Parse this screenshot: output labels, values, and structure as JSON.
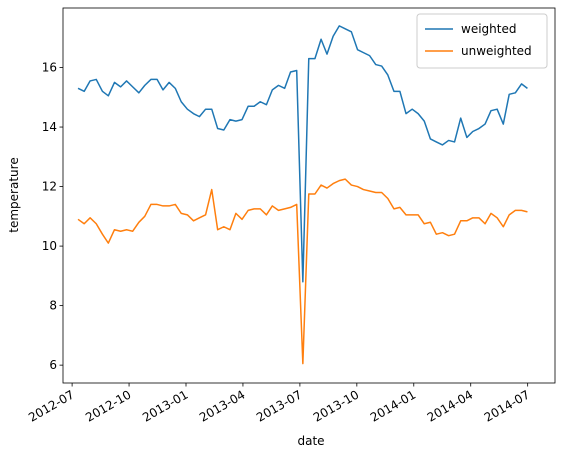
{
  "chart_data": {
    "type": "line",
    "xlabel": "date",
    "ylabel": "temperature",
    "x": [
      2012.526,
      2012.553,
      2012.579,
      2012.606,
      2012.633,
      2012.659,
      2012.686,
      2012.713,
      2012.739,
      2012.766,
      2012.793,
      2012.819,
      2012.846,
      2012.873,
      2012.899,
      2012.926,
      2012.953,
      2012.979,
      2013.006,
      2013.033,
      2013.059,
      2013.086,
      2013.113,
      2013.139,
      2013.166,
      2013.193,
      2013.219,
      2013.246,
      2013.273,
      2013.299,
      2013.326,
      2013.353,
      2013.379,
      2013.406,
      2013.433,
      2013.459,
      2013.486,
      2013.513,
      2013.539,
      2013.566,
      2013.593,
      2013.619,
      2013.646,
      2013.673,
      2013.699,
      2013.726,
      2013.753,
      2013.779,
      2013.806,
      2013.833,
      2013.859,
      2013.886,
      2013.913,
      2013.939,
      2013.966,
      2013.993,
      2014.019,
      2014.046,
      2014.073,
      2014.099,
      2014.126,
      2014.153,
      2014.179,
      2014.206,
      2014.233,
      2014.259,
      2014.286,
      2014.313,
      2014.339,
      2014.366,
      2014.393,
      2014.419,
      2014.446,
      2014.473,
      2014.499
    ],
    "series": [
      {
        "name": "weighted",
        "color": "#1f77b4",
        "values": [
          15.3,
          15.2,
          15.55,
          15.6,
          15.2,
          15.05,
          15.5,
          15.35,
          15.55,
          15.35,
          15.15,
          15.4,
          15.6,
          15.6,
          15.25,
          15.5,
          15.3,
          14.85,
          14.6,
          14.45,
          14.35,
          14.6,
          14.6,
          13.95,
          13.9,
          14.25,
          14.2,
          14.25,
          14.7,
          14.7,
          14.85,
          14.75,
          15.25,
          15.4,
          15.3,
          15.85,
          15.9,
          8.8,
          16.3,
          16.3,
          16.95,
          16.45,
          17.05,
          17.4,
          17.3,
          17.2,
          16.6,
          16.5,
          16.4,
          16.1,
          16.05,
          15.75,
          15.2,
          15.2,
          14.45,
          14.6,
          14.45,
          14.2,
          13.6,
          13.5,
          13.4,
          13.55,
          13.5,
          14.3,
          13.65,
          13.85,
          13.95,
          14.1,
          14.55,
          14.6,
          14.1,
          15.1,
          15.15,
          15.45,
          15.3
        ]
      },
      {
        "name": "unweighted",
        "color": "#ff7f0e",
        "values": [
          10.9,
          10.75,
          10.95,
          10.75,
          10.4,
          10.1,
          10.55,
          10.5,
          10.55,
          10.5,
          10.8,
          11.0,
          11.4,
          11.4,
          11.35,
          11.35,
          11.4,
          11.1,
          11.05,
          10.85,
          10.95,
          11.05,
          11.9,
          10.55,
          10.65,
          10.55,
          11.1,
          10.9,
          11.2,
          11.25,
          11.25,
          11.05,
          11.35,
          11.2,
          11.25,
          11.3,
          11.4,
          6.05,
          11.75,
          11.75,
          12.05,
          11.95,
          12.1,
          12.2,
          12.25,
          12.05,
          12.0,
          11.9,
          11.85,
          11.8,
          11.8,
          11.6,
          11.25,
          11.3,
          11.05,
          11.05,
          11.05,
          10.75,
          10.8,
          10.4,
          10.45,
          10.35,
          10.4,
          10.85,
          10.85,
          10.95,
          10.95,
          10.75,
          11.1,
          10.95,
          10.65,
          11.05,
          11.2,
          11.2,
          11.15
        ]
      }
    ],
    "xlim": [
      2012.46,
      2014.62
    ],
    "xticks": [
      {
        "value": 2012.5,
        "label": "2012-07"
      },
      {
        "value": 2012.75,
        "label": "2012-10"
      },
      {
        "value": 2013.0,
        "label": "2013-01"
      },
      {
        "value": 2013.25,
        "label": "2013-04"
      },
      {
        "value": 2013.5,
        "label": "2013-07"
      },
      {
        "value": 2013.75,
        "label": "2013-10"
      },
      {
        "value": 2014.0,
        "label": "2014-01"
      },
      {
        "value": 2014.25,
        "label": "2014-04"
      },
      {
        "value": 2014.5,
        "label": "2014-07"
      }
    ],
    "ylim": [
      5.4,
      18.0
    ],
    "yticks": [
      6,
      8,
      10,
      12,
      14,
      16
    ],
    "legend": "upper right",
    "grid": false
  }
}
